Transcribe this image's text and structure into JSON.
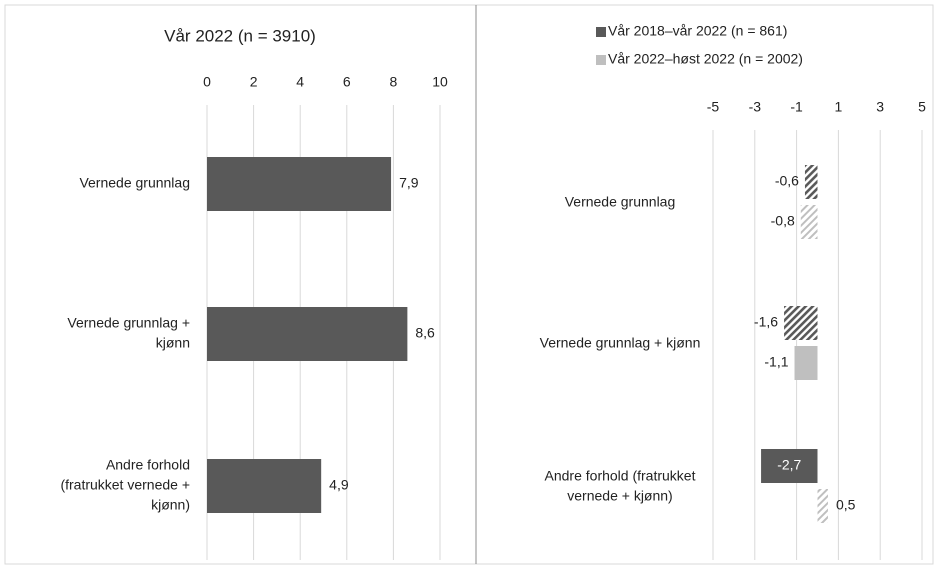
{
  "chart_data": [
    {
      "type": "bar",
      "orientation": "horizontal",
      "title": "Vår 2022 (n = 3910)",
      "categories": [
        [
          "Vernede grunnlag"
        ],
        [
          "Vernede grunnlag +",
          "kjønn"
        ],
        [
          "Andre forhold",
          "(fratrukket vernede +",
          "kjønn)"
        ]
      ],
      "values": [
        7.9,
        8.6,
        4.9
      ],
      "value_labels": [
        "7,9",
        "8,6",
        "4,9"
      ],
      "color": "#595959",
      "xlim": [
        0,
        10
      ],
      "xticks": [
        0,
        2,
        4,
        6,
        8,
        10
      ],
      "grid": true
    },
    {
      "type": "bar",
      "orientation": "horizontal",
      "categories": [
        [
          "Vernede grunnlag"
        ],
        [
          "Vernede grunnlag + kjønn"
        ],
        [
          "Andre forhold (fratrukket",
          "vernede + kjønn)"
        ]
      ],
      "series": [
        {
          "name": "Vår 2018–vår 2022 (n = 861)",
          "color": "#595959",
          "values": [
            -0.6,
            -1.6,
            -2.7
          ],
          "value_labels": [
            "-0,6",
            "-1,6",
            "-2,7"
          ],
          "hatched": [
            true,
            true,
            false
          ]
        },
        {
          "name": "Vår 2022–høst 2022 (n = 2002)",
          "color": "#bfbfbf",
          "values": [
            -0.8,
            -1.1,
            0.5
          ],
          "value_labels": [
            "-0,8",
            "-1,1",
            "0,5"
          ],
          "hatched": [
            true,
            false,
            true
          ]
        }
      ],
      "xlim": [
        -5,
        5
      ],
      "xticks": [
        -5,
        -3,
        -1,
        1,
        3,
        5
      ],
      "grid": true,
      "legend": "top"
    }
  ]
}
